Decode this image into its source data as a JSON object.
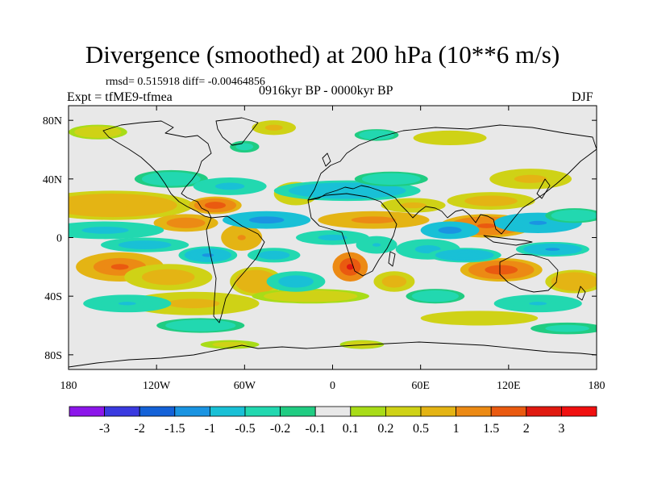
{
  "title": "Divergence (smoothed) at 200 hPa (10**6 m/s)",
  "stats": "rmsd= 0.515918 diff= -0.00464856",
  "left_label": "Expt = tfME9-tfmea",
  "center_label": "0916kyr BP - 0000kyr BP",
  "right_label": "DJF",
  "lat_ticks": [
    "80N",
    "40N",
    "0",
    "40S",
    "80S"
  ],
  "lon_ticks": [
    "180",
    "120W",
    "60W",
    "0",
    "60E",
    "120E",
    "180"
  ],
  "colorbar": {
    "labels": [
      "-3",
      "-2",
      "-1.5",
      "-1",
      "-0.5",
      "-0.2",
      "-0.1",
      "0.1",
      "0.2",
      "0.5",
      "1",
      "1.5",
      "2",
      "3"
    ],
    "colors": [
      "#8c16ea",
      "#3a3ae0",
      "#1462d8",
      "#1a94e2",
      "#19c0d6",
      "#22d8b0",
      "#20cc82",
      "#e8e8e8",
      "#a8dc18",
      "#cfd216",
      "#e4b414",
      "#ec8a14",
      "#ea5a10",
      "#e01a10",
      "#f01010"
    ]
  },
  "map": {
    "blobs": [
      {
        "lon": -150,
        "lat": 22,
        "rx": 55,
        "ry": 10,
        "v": 0.9
      },
      {
        "lon": -145,
        "lat": -20,
        "rx": 30,
        "ry": 10,
        "v": 1.6
      },
      {
        "lon": -100,
        "lat": 10,
        "rx": 22,
        "ry": 6,
        "v": 1.4
      },
      {
        "lon": -80,
        "lat": 22,
        "rx": 18,
        "ry": 6,
        "v": 1.8
      },
      {
        "lon": -112,
        "lat": -27,
        "rx": 30,
        "ry": 9,
        "v": 0.7
      },
      {
        "lon": -95,
        "lat": -45,
        "rx": 45,
        "ry": 8,
        "v": 0.6
      },
      {
        "lon": -62,
        "lat": 0,
        "rx": 14,
        "ry": 9,
        "v": 1.1
      },
      {
        "lon": -52,
        "lat": -30,
        "rx": 18,
        "ry": 10,
        "v": 1.0
      },
      {
        "lon": -25,
        "lat": 30,
        "rx": 15,
        "ry": 8,
        "v": 0.5
      },
      {
        "lon": 28,
        "lat": 12,
        "rx": 38,
        "ry": 6,
        "v": 1.2
      },
      {
        "lon": 55,
        "lat": 22,
        "rx": 22,
        "ry": 5,
        "v": 0.6
      },
      {
        "lon": 12,
        "lat": -20,
        "rx": 12,
        "ry": 10,
        "v": 2.2
      },
      {
        "lon": 42,
        "lat": -30,
        "rx": 14,
        "ry": 7,
        "v": 0.8
      },
      {
        "lon": 105,
        "lat": 8,
        "rx": 32,
        "ry": 8,
        "v": 1.7
      },
      {
        "lon": 108,
        "lat": 25,
        "rx": 30,
        "ry": 6,
        "v": 0.7
      },
      {
        "lon": 135,
        "lat": 40,
        "rx": 28,
        "ry": 7,
        "v": 0.6
      },
      {
        "lon": 115,
        "lat": -22,
        "rx": 28,
        "ry": 8,
        "v": 1.9
      },
      {
        "lon": 165,
        "lat": -30,
        "rx": 20,
        "ry": 8,
        "v": 0.9
      },
      {
        "lon": -15,
        "lat": -40,
        "rx": 40,
        "ry": 5,
        "v": 0.4
      },
      {
        "lon": 100,
        "lat": -55,
        "rx": 40,
        "ry": 5,
        "v": 0.5
      },
      {
        "lon": -70,
        "lat": -73,
        "rx": 20,
        "ry": 3,
        "v": 0.3
      },
      {
        "lon": 20,
        "lat": -73,
        "rx": 15,
        "ry": 3,
        "v": 0.4
      },
      {
        "lon": -40,
        "lat": 75,
        "rx": 15,
        "ry": 5,
        "v": 0.6
      },
      {
        "lon": 80,
        "lat": 68,
        "rx": 25,
        "ry": 5,
        "v": 0.5
      },
      {
        "lon": -160,
        "lat": 72,
        "rx": 20,
        "ry": 5,
        "v": 0.4
      },
      {
        "lon": -110,
        "lat": 40,
        "rx": 25,
        "ry": 6,
        "v": -0.4
      },
      {
        "lon": -155,
        "lat": 5,
        "rx": 40,
        "ry": 6,
        "v": -0.6
      },
      {
        "lon": -128,
        "lat": -5,
        "rx": 30,
        "ry": 5,
        "v": -0.8
      },
      {
        "lon": -140,
        "lat": -45,
        "rx": 30,
        "ry": 6,
        "v": -0.5
      },
      {
        "lon": -85,
        "lat": -12,
        "rx": 20,
        "ry": 6,
        "v": -1.0
      },
      {
        "lon": -70,
        "lat": 35,
        "rx": 25,
        "ry": 6,
        "v": -0.6
      },
      {
        "lon": -45,
        "lat": 12,
        "rx": 30,
        "ry": 6,
        "v": -1.2
      },
      {
        "lon": -40,
        "lat": -12,
        "rx": 18,
        "ry": 5,
        "v": -0.7
      },
      {
        "lon": -25,
        "lat": -30,
        "rx": 20,
        "ry": 7,
        "v": -0.8
      },
      {
        "lon": 0,
        "lat": 0,
        "rx": 25,
        "ry": 5,
        "v": -0.6
      },
      {
        "lon": 10,
        "lat": 32,
        "rx": 50,
        "ry": 7,
        "v": -0.9
      },
      {
        "lon": 30,
        "lat": -5,
        "rx": 14,
        "ry": 6,
        "v": -0.5
      },
      {
        "lon": 40,
        "lat": 40,
        "rx": 25,
        "ry": 5,
        "v": -0.4
      },
      {
        "lon": 65,
        "lat": -8,
        "rx": 22,
        "ry": 7,
        "v": -0.6
      },
      {
        "lon": 80,
        "lat": 5,
        "rx": 20,
        "ry": 6,
        "v": -1.2
      },
      {
        "lon": 90,
        "lat": -12,
        "rx": 25,
        "ry": 5,
        "v": -0.9
      },
      {
        "lon": 140,
        "lat": 10,
        "rx": 30,
        "ry": 7,
        "v": -1.1
      },
      {
        "lon": 165,
        "lat": 15,
        "rx": 20,
        "ry": 5,
        "v": -0.4
      },
      {
        "lon": 150,
        "lat": -8,
        "rx": 25,
        "ry": 5,
        "v": -1.0
      },
      {
        "lon": 70,
        "lat": -40,
        "rx": 20,
        "ry": 5,
        "v": -0.4
      },
      {
        "lon": 140,
        "lat": -45,
        "rx": 30,
        "ry": 6,
        "v": -0.5
      },
      {
        "lon": -90,
        "lat": -60,
        "rx": 30,
        "ry": 5,
        "v": -0.4
      },
      {
        "lon": 160,
        "lat": -62,
        "rx": 25,
        "ry": 4,
        "v": -0.3
      },
      {
        "lon": 30,
        "lat": 70,
        "rx": 15,
        "ry": 4,
        "v": -0.4
      },
      {
        "lon": -60,
        "lat": 62,
        "rx": 10,
        "ry": 4,
        "v": -0.3
      }
    ]
  }
}
